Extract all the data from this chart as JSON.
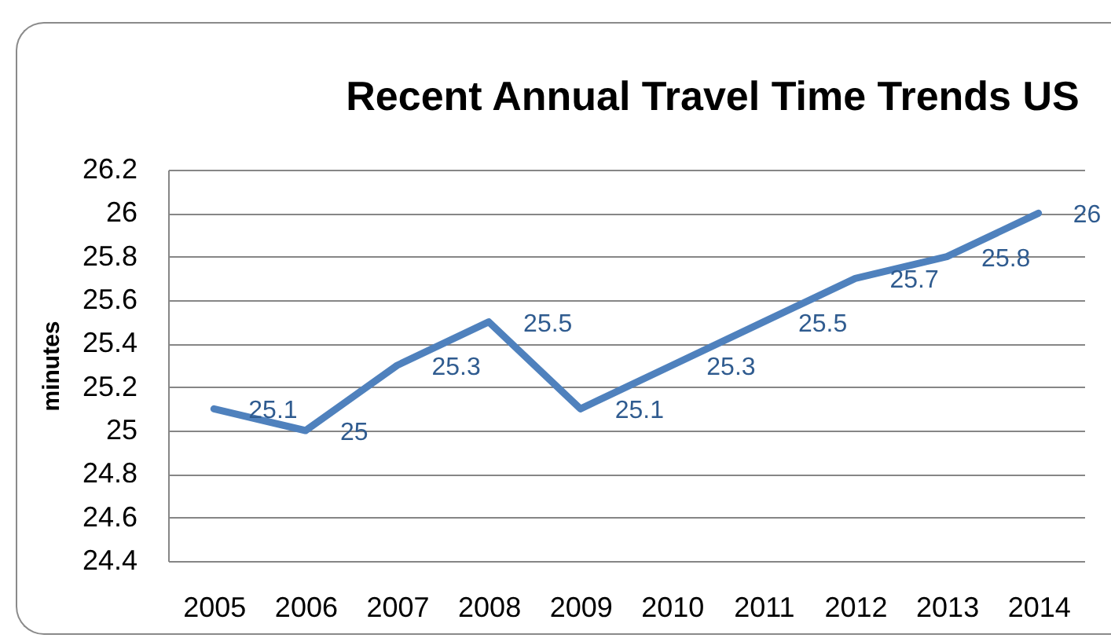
{
  "chart_data": {
    "type": "line",
    "title": "Recent Annual Travel Time Trends  US",
    "ylabel": "minutes",
    "categories": [
      "2005",
      "2006",
      "2007",
      "2008",
      "2009",
      "2010",
      "2011",
      "2012",
      "2013",
      "2014"
    ],
    "series": [
      {
        "color": "#4f81bd",
        "values": [
          25.1,
          25,
          25.3,
          25.5,
          25.1,
          25.3,
          25.5,
          25.7,
          25.8,
          26
        ]
      }
    ],
    "ylim": [
      24.4,
      26.2
    ],
    "yticks": [
      24.4,
      24.6,
      24.8,
      25,
      25.2,
      25.4,
      25.6,
      25.8,
      26,
      26.2
    ],
    "grid": "y",
    "data_labels": true,
    "line_style": "solid"
  }
}
